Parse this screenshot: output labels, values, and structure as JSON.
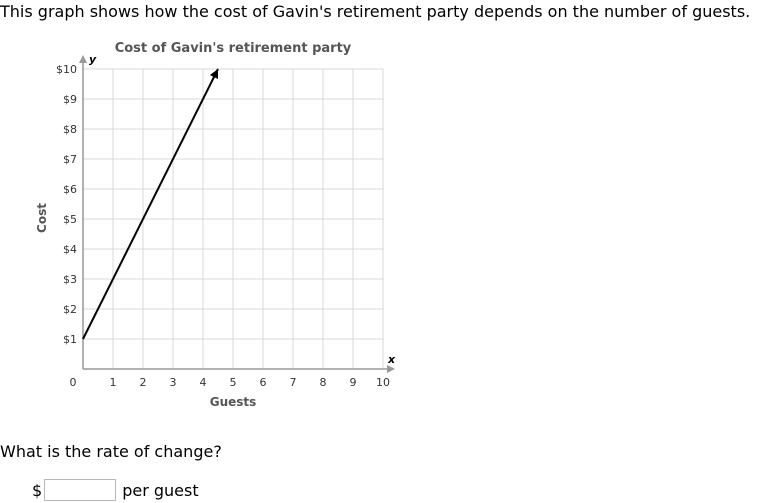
{
  "intro_text": "This graph shows how the cost of Gavin's retirement party depends on the number of guests.",
  "question": {
    "prompt": "What is the rate of change?",
    "currency_symbol": "$",
    "answer_value": "",
    "units_label": "per guest"
  },
  "colors": {
    "grid": "#d9d9d9",
    "axis": "#999999",
    "line": "#000000",
    "title": "#555555"
  },
  "chart_data": {
    "type": "line",
    "title": "Cost of Gavin's retirement party",
    "xlabel": "Guests",
    "ylabel": "Cost",
    "x_axis_letter": "x",
    "y_axis_letter": "y",
    "xlim": [
      0,
      10
    ],
    "ylim": [
      0,
      10
    ],
    "x_ticks": [
      {
        "value": 0,
        "label": "0"
      },
      {
        "value": 1,
        "label": "1"
      },
      {
        "value": 2,
        "label": "2"
      },
      {
        "value": 3,
        "label": "3"
      },
      {
        "value": 4,
        "label": "4"
      },
      {
        "value": 5,
        "label": "5"
      },
      {
        "value": 6,
        "label": "6"
      },
      {
        "value": 7,
        "label": "7"
      },
      {
        "value": 8,
        "label": "8"
      },
      {
        "value": 9,
        "label": "9"
      },
      {
        "value": 10,
        "label": "10"
      }
    ],
    "y_ticks": [
      {
        "value": 1,
        "label": "$1"
      },
      {
        "value": 2,
        "label": "$2"
      },
      {
        "value": 3,
        "label": "$3"
      },
      {
        "value": 4,
        "label": "$4"
      },
      {
        "value": 5,
        "label": "$5"
      },
      {
        "value": 6,
        "label": "$6"
      },
      {
        "value": 7,
        "label": "$7"
      },
      {
        "value": 8,
        "label": "$8"
      },
      {
        "value": 9,
        "label": "$9"
      },
      {
        "value": 10,
        "label": "$10"
      }
    ],
    "grid": true,
    "series": [
      {
        "points": [
          [
            0,
            1
          ],
          [
            4.5,
            10
          ]
        ],
        "arrow_end": true
      }
    ]
  }
}
